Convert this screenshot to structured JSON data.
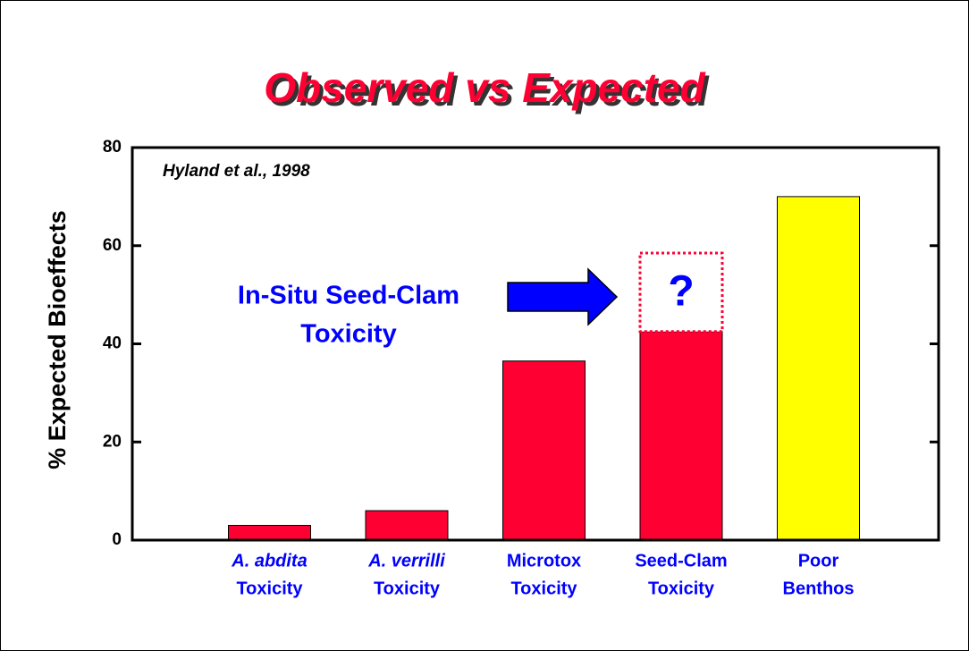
{
  "chart_data": {
    "type": "bar",
    "title": "Observed vs Expected",
    "title_color": "#ff0033",
    "source": "Hyland et al., 1998",
    "ylabel": "% Expected Bioeffects",
    "categories": [
      [
        "A. abdita",
        "Toxicity"
      ],
      [
        "A. verrilli",
        "Toxicity"
      ],
      [
        "Microtox",
        "Toxicity"
      ],
      [
        "Seed-Clam",
        "Toxicity"
      ],
      [
        "Poor",
        "Benthos"
      ]
    ],
    "italic_first_line": [
      true,
      true,
      false,
      false,
      false
    ],
    "values": [
      3,
      6,
      36.5,
      42.5,
      70
    ],
    "colors": [
      "#ff0033",
      "#ff0033",
      "#ff0033",
      "#ff0033",
      "#ffff00"
    ],
    "ylim": [
      0,
      80
    ],
    "yticks": [
      0,
      20,
      40,
      60,
      80
    ],
    "annotation": {
      "lines": [
        "In-Situ Seed-Clam",
        "Toxicity"
      ],
      "color": "#0000ff"
    },
    "uncertain_box": {
      "category": 3,
      "range": [
        42.5,
        58.5
      ],
      "label": "?",
      "color": "#ff0033"
    }
  }
}
